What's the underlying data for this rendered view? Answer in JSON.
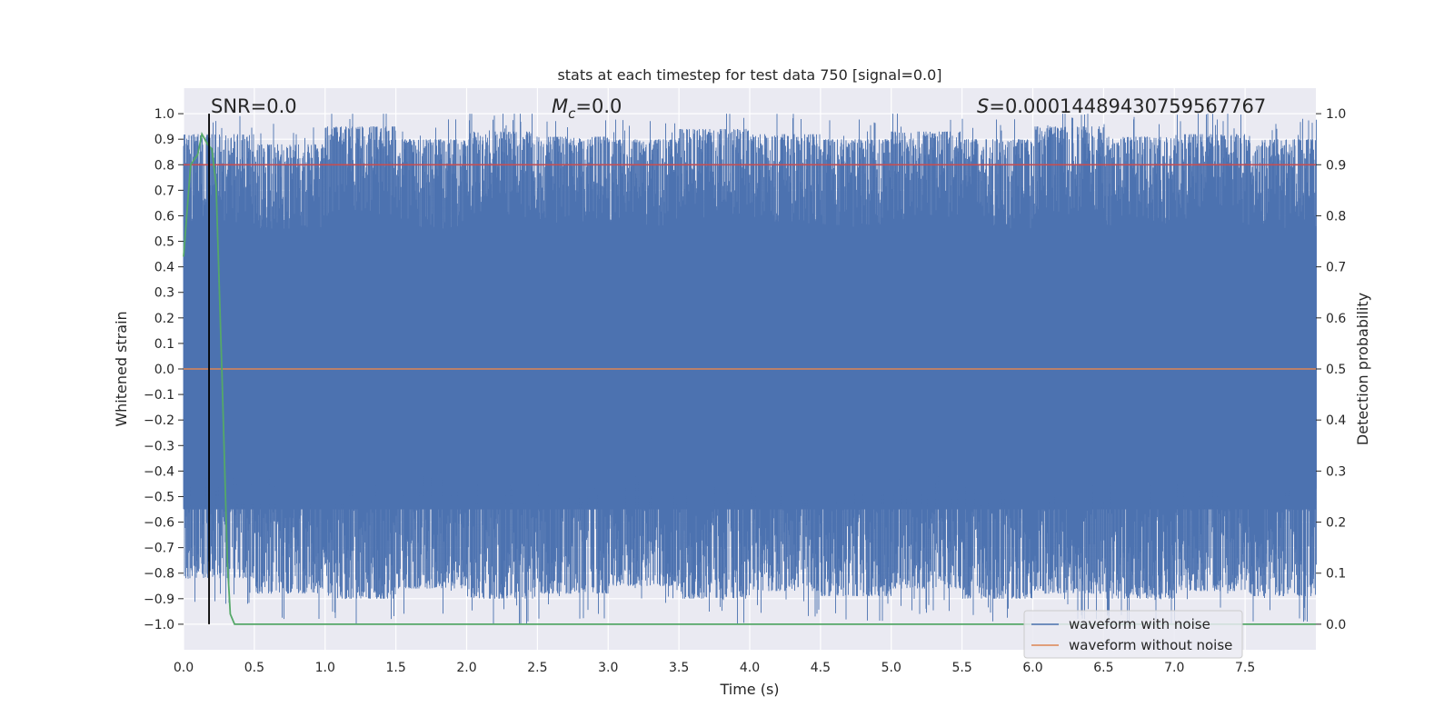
{
  "chart_data": {
    "type": "line",
    "title": "stats at each timestep for test data 750 [signal=0.0]",
    "xlabel": "Time (s)",
    "ylabel": "Whitened strain",
    "ylabel_right": "Detection probability",
    "xlim": [
      0.0,
      8.0
    ],
    "ylim": [
      -1.1,
      1.1
    ],
    "ylim_right": [
      -0.05,
      1.05
    ],
    "x_ticks": [
      "0.0",
      "0.5",
      "1.0",
      "1.5",
      "2.0",
      "2.5",
      "3.0",
      "3.5",
      "4.0",
      "4.5",
      "5.0",
      "5.5",
      "6.0",
      "6.5",
      "7.0",
      "7.5"
    ],
    "y_ticks": [
      "1.0",
      "0.9",
      "0.8",
      "0.7",
      "0.6",
      "0.5",
      "0.4",
      "0.3",
      "0.2",
      "0.1",
      "0.0",
      "−0.1",
      "−0.2",
      "−0.3",
      "−0.4",
      "−0.5",
      "−0.6",
      "−0.7",
      "−0.8",
      "−0.9",
      "−1.0"
    ],
    "y_ticks_right": [
      "1.0",
      "0.9",
      "0.8",
      "0.7",
      "0.6",
      "0.5",
      "0.4",
      "0.3",
      "0.2",
      "0.1",
      "0.0"
    ],
    "grid": true,
    "legend_position": "lower-right",
    "annotations": {
      "snr": "SNR=0.0",
      "mc_symbol": "M",
      "mc_sub": "c",
      "mc_value": "=0.0",
      "s_symbol": "S",
      "s_value": "=0.00014489430759567767"
    },
    "series": [
      {
        "name": "waveform with noise",
        "color": "#4c72b0",
        "description_values": "dense normalized noise filling range -1.0 to 1.0",
        "typical_upper_envelope": [
          0.92,
          0.88,
          0.95,
          0.9,
          0.93,
          0.91,
          0.9,
          0.94,
          0.92,
          0.9,
          0.93,
          0.9,
          0.95,
          0.91,
          0.92,
          0.9
        ],
        "typical_lower_envelope": [
          -0.82,
          -0.88,
          -0.9,
          -0.86,
          -0.9,
          -0.88,
          -0.85,
          -0.9,
          -0.87,
          -0.89,
          -0.86,
          -0.9,
          -0.88,
          -0.9,
          -0.87,
          -0.89
        ]
      },
      {
        "name": "waveform without noise",
        "color": "#dd8452",
        "x": [
          0.0,
          8.0
        ],
        "y": [
          0.0,
          0.0
        ]
      },
      {
        "color": "#55a868",
        "axis": "right",
        "x": [
          0.0,
          0.05,
          0.1,
          0.13,
          0.17,
          0.2,
          0.23,
          0.27,
          0.31,
          0.33,
          0.36,
          0.4,
          8.0
        ],
        "y": [
          0.72,
          0.9,
          0.92,
          0.96,
          0.94,
          0.93,
          0.86,
          0.5,
          0.12,
          0.02,
          0.0,
          0.0,
          0.0
        ]
      }
    ],
    "threshold_line": {
      "color": "#c44e52",
      "axis": "right",
      "value": 0.9
    },
    "marker_line": {
      "color": "#000000",
      "x": 0.18
    }
  }
}
